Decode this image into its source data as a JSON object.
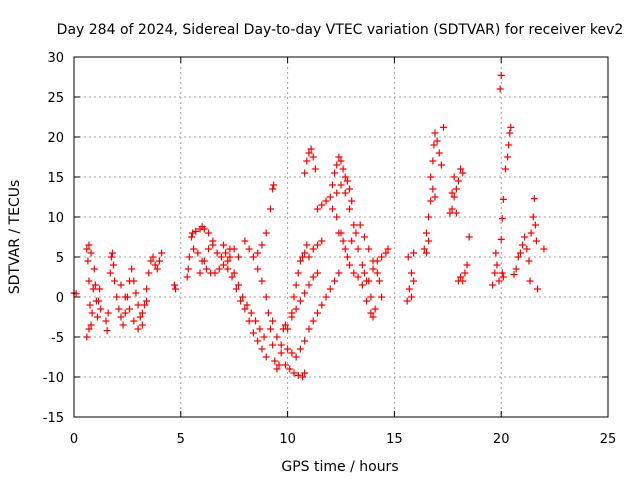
{
  "chart_data": {
    "type": "scatter",
    "title": "Day 284 of 2024, Sidereal Day-to-day VTEC variation (SDTVAR) for receiver kev2",
    "xlabel": "GPS time / hours",
    "ylabel": "SDTVAR / TECUs",
    "xlim": [
      0,
      25
    ],
    "ylim": [
      -15,
      30
    ],
    "xticks": [
      "0",
      "5",
      "10",
      "15",
      "20",
      "25"
    ],
    "yticks": [
      "-15",
      "-10",
      "-5",
      "0",
      "5",
      "10",
      "15",
      "20",
      "25",
      "30"
    ],
    "grid": true,
    "marker": "plus",
    "color": "#ff0000",
    "series": [
      {
        "name": "SDTVAR",
        "points": [
          [
            0.0,
            0.5
          ],
          [
            0.1,
            0.4
          ],
          [
            0.6,
            6.0
          ],
          [
            0.65,
            4.5
          ],
          [
            0.7,
            2.0
          ],
          [
            0.75,
            -1.0
          ],
          [
            0.8,
            -3.5
          ],
          [
            0.6,
            -5.0
          ],
          [
            0.7,
            -4.0
          ],
          [
            0.85,
            -2.0
          ],
          [
            0.9,
            1.0
          ],
          [
            0.95,
            3.5
          ],
          [
            1.0,
            1.5
          ],
          [
            1.05,
            -0.5
          ],
          [
            1.1,
            -2.5
          ],
          [
            1.15,
            -0.5
          ],
          [
            1.2,
            1.0
          ],
          [
            1.25,
            -1.5
          ],
          [
            0.7,
            6.5
          ],
          [
            0.8,
            5.5
          ],
          [
            1.5,
            -3.0
          ],
          [
            1.55,
            -4.2
          ],
          [
            1.6,
            -2.0
          ],
          [
            1.7,
            3.0
          ],
          [
            1.75,
            5.0
          ],
          [
            1.8,
            5.5
          ],
          [
            1.85,
            4.0
          ],
          [
            1.9,
            2.0
          ],
          [
            2.0,
            0.0
          ],
          [
            2.1,
            -1.5
          ],
          [
            2.2,
            -2.5
          ],
          [
            2.3,
            -3.5
          ],
          [
            2.4,
            -2.0
          ],
          [
            2.5,
            0.0
          ],
          [
            2.6,
            2.0
          ],
          [
            2.7,
            3.5
          ],
          [
            2.8,
            2.0
          ],
          [
            2.9,
            0.5
          ],
          [
            3.0,
            -1.0
          ],
          [
            3.1,
            -2.5
          ],
          [
            3.2,
            -3.5
          ],
          [
            3.3,
            -1.0
          ],
          [
            3.4,
            1.0
          ],
          [
            3.5,
            3.0
          ],
          [
            3.6,
            4.5
          ],
          [
            3.7,
            5.0
          ],
          [
            3.8,
            4.0
          ],
          [
            3.9,
            3.5
          ],
          [
            4.0,
            4.5
          ],
          [
            4.1,
            5.5
          ],
          [
            2.2,
            1.5
          ],
          [
            2.4,
            0.0
          ],
          [
            2.6,
            -1.5
          ],
          [
            2.8,
            -3.0
          ],
          [
            3.0,
            -4.0
          ],
          [
            3.2,
            -2.0
          ],
          [
            3.4,
            -0.5
          ],
          [
            4.7,
            1.5
          ],
          [
            4.75,
            1.0
          ],
          [
            5.3,
            2.5
          ],
          [
            5.35,
            3.5
          ],
          [
            5.4,
            5.0
          ],
          [
            5.5,
            7.5
          ],
          [
            5.55,
            8.0
          ],
          [
            5.7,
            8.2
          ],
          [
            5.9,
            8.5
          ],
          [
            6.0,
            8.8
          ],
          [
            6.1,
            8.5
          ],
          [
            6.3,
            8.0
          ],
          [
            6.5,
            7.0
          ],
          [
            5.6,
            6.0
          ],
          [
            5.8,
            5.5
          ],
          [
            6.0,
            4.5
          ],
          [
            6.2,
            3.5
          ],
          [
            6.4,
            3.0
          ],
          [
            6.6,
            3.0
          ],
          [
            6.8,
            3.5
          ],
          [
            7.0,
            4.0
          ],
          [
            7.2,
            4.5
          ],
          [
            5.9,
            3.0
          ],
          [
            6.1,
            4.5
          ],
          [
            6.3,
            6.0
          ],
          [
            6.5,
            6.5
          ],
          [
            6.7,
            5.5
          ],
          [
            6.9,
            5.0
          ],
          [
            7.1,
            5.5
          ],
          [
            7.3,
            6.0
          ],
          [
            7.5,
            6.0
          ],
          [
            7.7,
            5.0
          ],
          [
            7.0,
            6.5
          ],
          [
            7.3,
            5.0
          ],
          [
            7.5,
            3.0
          ],
          [
            7.7,
            1.5
          ],
          [
            7.9,
            0.0
          ],
          [
            8.1,
            -1.0
          ],
          [
            8.3,
            -2.0
          ],
          [
            8.5,
            -3.0
          ],
          [
            8.7,
            -4.0
          ],
          [
            8.9,
            -5.0
          ],
          [
            7.2,
            3.5
          ],
          [
            7.4,
            2.5
          ],
          [
            7.6,
            1.0
          ],
          [
            7.8,
            -0.5
          ],
          [
            8.0,
            -1.5
          ],
          [
            8.2,
            -3.0
          ],
          [
            8.4,
            -4.5
          ],
          [
            8.6,
            -5.5
          ],
          [
            8.8,
            -6.5
          ],
          [
            9.0,
            -7.5
          ],
          [
            8.0,
            7.0
          ],
          [
            8.2,
            6.0
          ],
          [
            8.4,
            5.0
          ],
          [
            8.6,
            5.5
          ],
          [
            8.8,
            6.5
          ],
          [
            9.0,
            8.0
          ],
          [
            9.2,
            11.0
          ],
          [
            9.3,
            13.5
          ],
          [
            9.35,
            14.0
          ],
          [
            8.6,
            3.5
          ],
          [
            8.8,
            2.0
          ],
          [
            9.0,
            0.0
          ],
          [
            9.1,
            -2.0
          ],
          [
            9.2,
            -4.0
          ],
          [
            9.3,
            -6.0
          ],
          [
            9.4,
            -8.0
          ],
          [
            9.5,
            -9.0
          ],
          [
            9.6,
            -8.5
          ],
          [
            9.7,
            -6.0
          ],
          [
            9.8,
            -4.0
          ],
          [
            9.9,
            -3.5
          ],
          [
            9.3,
            -3.0
          ],
          [
            9.5,
            -5.0
          ],
          [
            9.7,
            -7.0
          ],
          [
            9.9,
            -8.5
          ],
          [
            10.1,
            -9.0
          ],
          [
            10.3,
            -9.5
          ],
          [
            10.5,
            -9.8
          ],
          [
            10.7,
            -10.0
          ],
          [
            10.8,
            -9.5
          ],
          [
            10.0,
            -6.5
          ],
          [
            10.2,
            -7.0
          ],
          [
            10.4,
            -7.5
          ],
          [
            10.6,
            -6.5
          ],
          [
            10.8,
            -5.5
          ],
          [
            11.0,
            -4.0
          ],
          [
            11.2,
            -3.0
          ],
          [
            11.4,
            -2.0
          ],
          [
            11.6,
            -1.0
          ],
          [
            11.8,
            0.0
          ],
          [
            12.0,
            1.0
          ],
          [
            12.2,
            2.0
          ],
          [
            12.4,
            3.0
          ],
          [
            10.0,
            -4.0
          ],
          [
            10.2,
            -2.5
          ],
          [
            10.4,
            -1.5
          ],
          [
            10.6,
            -0.5
          ],
          [
            10.8,
            0.5
          ],
          [
            11.0,
            1.5
          ],
          [
            11.2,
            2.5
          ],
          [
            11.4,
            3.0
          ],
          [
            10.2,
            -2.0
          ],
          [
            10.3,
            0.0
          ],
          [
            10.4,
            1.5
          ],
          [
            10.5,
            3.0
          ],
          [
            10.6,
            4.5
          ],
          [
            10.7,
            5.0
          ],
          [
            10.8,
            5.5
          ],
          [
            10.9,
            6.5
          ],
          [
            11.0,
            5.0
          ],
          [
            11.2,
            6.0
          ],
          [
            11.4,
            6.5
          ],
          [
            11.6,
            7.0
          ],
          [
            10.8,
            15.5
          ],
          [
            10.9,
            17.0
          ],
          [
            11.0,
            18.0
          ],
          [
            11.1,
            18.5
          ],
          [
            11.2,
            17.5
          ],
          [
            11.3,
            16.0
          ],
          [
            11.4,
            11.0
          ],
          [
            11.6,
            11.5
          ],
          [
            11.8,
            12.0
          ],
          [
            12.0,
            12.5
          ],
          [
            12.1,
            14.0
          ],
          [
            12.2,
            15.5
          ],
          [
            12.3,
            16.5
          ],
          [
            12.4,
            17.5
          ],
          [
            12.5,
            17.0
          ],
          [
            12.6,
            16.0
          ],
          [
            12.7,
            15.0
          ],
          [
            12.8,
            14.5
          ],
          [
            12.9,
            13.5
          ],
          [
            13.0,
            12.0
          ],
          [
            12.1,
            11.0
          ],
          [
            12.3,
            13.0
          ],
          [
            12.5,
            14.0
          ],
          [
            12.7,
            13.0
          ],
          [
            12.9,
            11.0
          ],
          [
            13.1,
            9.0
          ],
          [
            13.3,
            6.0
          ],
          [
            13.5,
            4.0
          ],
          [
            13.7,
            2.0
          ],
          [
            13.9,
            0.0
          ],
          [
            14.1,
            -1.5
          ],
          [
            12.3,
            10.0
          ],
          [
            12.5,
            8.0
          ],
          [
            12.7,
            6.0
          ],
          [
            12.9,
            4.0
          ],
          [
            13.1,
            3.0
          ],
          [
            13.3,
            2.5
          ],
          [
            13.5,
            1.5
          ],
          [
            13.7,
            -0.5
          ],
          [
            13.9,
            -2.0
          ],
          [
            14.0,
            -2.5
          ],
          [
            12.4,
            8.0
          ],
          [
            12.6,
            7.0
          ],
          [
            12.8,
            5.0
          ],
          [
            13.0,
            7.0
          ],
          [
            13.2,
            8.0
          ],
          [
            13.4,
            9.0
          ],
          [
            13.6,
            7.5
          ],
          [
            13.8,
            6.0
          ],
          [
            14.0,
            4.5
          ],
          [
            14.2,
            3.0
          ],
          [
            14.3,
            2.0
          ],
          [
            14.4,
            0.0
          ],
          [
            13.6,
            3.0
          ],
          [
            13.8,
            2.0
          ],
          [
            14.0,
            3.5
          ],
          [
            14.2,
            4.5
          ],
          [
            14.4,
            5.0
          ],
          [
            14.6,
            5.5
          ],
          [
            14.7,
            6.0
          ],
          [
            15.6,
            -0.5
          ],
          [
            15.7,
            1.0
          ],
          [
            15.8,
            3.0
          ],
          [
            15.9,
            5.5
          ],
          [
            15.65,
            5.0
          ],
          [
            15.8,
            0.0
          ],
          [
            15.9,
            2.0
          ],
          [
            16.4,
            6.0
          ],
          [
            16.5,
            8.0
          ],
          [
            16.6,
            10.0
          ],
          [
            16.7,
            12.0
          ],
          [
            16.8,
            13.5
          ],
          [
            16.9,
            12.5
          ],
          [
            16.7,
            15.0
          ],
          [
            16.8,
            17.0
          ],
          [
            16.85,
            19.0
          ],
          [
            16.9,
            20.5
          ],
          [
            17.0,
            19.5
          ],
          [
            17.1,
            18.0
          ],
          [
            17.2,
            16.5
          ],
          [
            17.3,
            21.2
          ],
          [
            16.5,
            5.5
          ],
          [
            16.6,
            7.0
          ],
          [
            17.6,
            10.5
          ],
          [
            17.7,
            11.0
          ],
          [
            17.8,
            12.5
          ],
          [
            17.9,
            13.5
          ],
          [
            18.0,
            14.5
          ],
          [
            18.1,
            16.0
          ],
          [
            18.2,
            15.5
          ],
          [
            17.7,
            13.0
          ],
          [
            17.8,
            15.0
          ],
          [
            17.9,
            10.5
          ],
          [
            18.0,
            2.0
          ],
          [
            18.1,
            2.5
          ],
          [
            18.2,
            2.0
          ],
          [
            18.3,
            3.0
          ],
          [
            18.4,
            4.0
          ],
          [
            18.5,
            7.5
          ],
          [
            19.6,
            1.5
          ],
          [
            19.7,
            3.0
          ],
          [
            19.8,
            4.0
          ],
          [
            19.75,
            5.5
          ],
          [
            19.9,
            2.0
          ],
          [
            19.95,
            26.0
          ],
          [
            20.0,
            27.7
          ],
          [
            20.1,
            12.2
          ],
          [
            20.05,
            9.8
          ],
          [
            20.0,
            7.2
          ],
          [
            20.05,
            3.0
          ],
          [
            20.1,
            2.5
          ],
          [
            20.2,
            16.0
          ],
          [
            20.3,
            17.5
          ],
          [
            20.35,
            19.0
          ],
          [
            20.4,
            20.5
          ],
          [
            20.45,
            21.2
          ],
          [
            20.6,
            2.8
          ],
          [
            20.7,
            3.5
          ],
          [
            20.8,
            5.0
          ],
          [
            20.9,
            5.5
          ],
          [
            21.0,
            6.5
          ],
          [
            21.1,
            7.5
          ],
          [
            21.2,
            6.0
          ],
          [
            21.3,
            4.5
          ],
          [
            21.35,
            2.0
          ],
          [
            21.4,
            8.0
          ],
          [
            21.5,
            10.0
          ],
          [
            21.55,
            12.3
          ],
          [
            21.6,
            9.0
          ],
          [
            21.7,
            1.0
          ],
          [
            21.65,
            7.0
          ],
          [
            22.0,
            6.0
          ]
        ]
      }
    ]
  }
}
